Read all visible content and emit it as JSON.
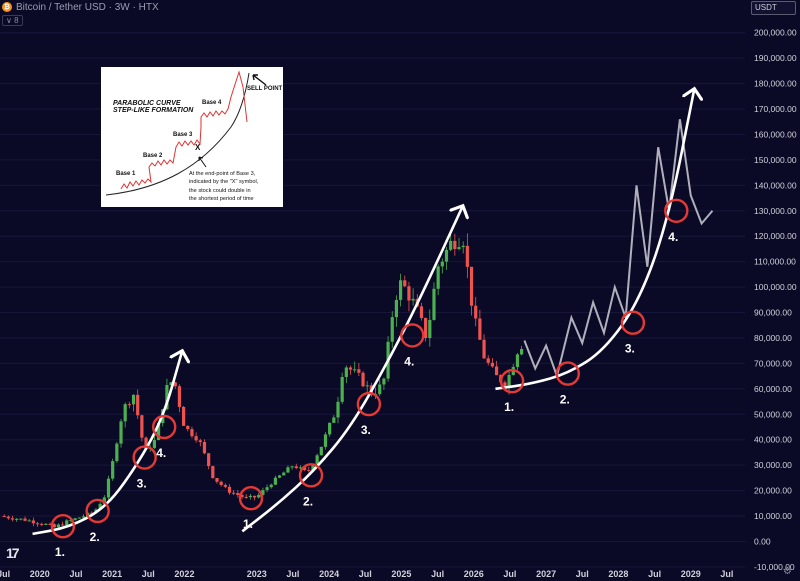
{
  "header": {
    "logo_glyph": "₿",
    "title": "Bitcoin / Tether USD · 3W · HTX",
    "indicator_count": "8",
    "currency": "USDT"
  },
  "icons": {
    "logo": "bitcoin-logo-icon",
    "brand": "tradingview-logo-icon",
    "settings": "gear-icon"
  },
  "colors": {
    "background": "#0b0a26",
    "up_candle": "#4caf50",
    "down_candle": "#ef5350",
    "projection": "#b0b0bc",
    "circle": "#e53935",
    "curve": "#ffffff"
  },
  "chart_data": {
    "type": "candlestick",
    "y_ticks": [
      -10000,
      0,
      10000,
      20000,
      30000,
      40000,
      50000,
      60000,
      70000,
      80000,
      90000,
      100000,
      110000,
      120000,
      130000,
      140000,
      150000,
      160000,
      170000,
      180000,
      190000,
      200000
    ],
    "y_tick_labels": [
      "-10,000.00",
      "0.00",
      "10,000.00",
      "20,000.00",
      "30,000.00",
      "40,000.00",
      "50,000.00",
      "60,000.00",
      "70,000.00",
      "80,000.00",
      "90,000.00",
      "100,000.00",
      "110,000.00",
      "120,000.00",
      "130,000.00",
      "140,000.00",
      "150,000.00",
      "160,000.00",
      "170,000.00",
      "180,000.00",
      "190,000.00",
      "200,000.00"
    ],
    "ylim": [
      -12000,
      205000
    ],
    "xlim": [
      2019.45,
      2029.75
    ],
    "x_ticks": [
      {
        "x": 2019.5,
        "label": "Jul"
      },
      {
        "x": 2020.0,
        "label": "2020"
      },
      {
        "x": 2020.5,
        "label": "Jul"
      },
      {
        "x": 2021.0,
        "label": "2021"
      },
      {
        "x": 2021.5,
        "label": "Jul"
      },
      {
        "x": 2022.0,
        "label": "2022"
      },
      {
        "x": 2023.0,
        "label": "2023"
      },
      {
        "x": 2023.5,
        "label": "Jul"
      },
      {
        "x": 2024.0,
        "label": "2024"
      },
      {
        "x": 2024.5,
        "label": "Jul"
      },
      {
        "x": 2025.0,
        "label": "2025"
      },
      {
        "x": 2025.5,
        "label": "Jul"
      },
      {
        "x": 2026.0,
        "label": "2026"
      },
      {
        "x": 2026.5,
        "label": "Jul"
      },
      {
        "x": 2027.0,
        "label": "2027"
      },
      {
        "x": 2027.5,
        "label": "Jul"
      },
      {
        "x": 2028.0,
        "label": "2028"
      },
      {
        "x": 2028.5,
        "label": "Jul"
      },
      {
        "x": 2029.0,
        "label": "2029"
      },
      {
        "x": 2029.5,
        "label": "Jul"
      }
    ],
    "price_path": [
      [
        2019.45,
        10000
      ],
      [
        2019.8,
        8500
      ],
      [
        2020.05,
        7000
      ],
      [
        2020.2,
        5500
      ],
      [
        2020.35,
        7500
      ],
      [
        2020.55,
        9500
      ],
      [
        2020.75,
        11500
      ],
      [
        2020.9,
        18000
      ],
      [
        2021.0,
        30000
      ],
      [
        2021.15,
        52000
      ],
      [
        2021.3,
        58000
      ],
      [
        2021.45,
        35000
      ],
      [
        2021.6,
        40000
      ],
      [
        2021.75,
        60000
      ],
      [
        2021.85,
        64000
      ],
      [
        2022.0,
        45000
      ],
      [
        2022.2,
        40000
      ],
      [
        2022.4,
        25000
      ],
      [
        2022.6,
        20000
      ],
      [
        2022.85,
        17000
      ],
      [
        2023.0,
        17500
      ],
      [
        2023.2,
        23000
      ],
      [
        2023.5,
        30000
      ],
      [
        2023.7,
        27000
      ],
      [
        2023.9,
        38000
      ],
      [
        2024.1,
        52000
      ],
      [
        2024.2,
        70000
      ],
      [
        2024.4,
        65000
      ],
      [
        2024.6,
        58000
      ],
      [
        2024.75,
        62000
      ],
      [
        2024.9,
        95000
      ],
      [
        2025.0,
        102000
      ],
      [
        2025.2,
        92000
      ],
      [
        2025.35,
        80000
      ],
      [
        2025.5,
        108000
      ],
      [
        2025.7,
        118000
      ],
      [
        2025.85,
        120000
      ],
      [
        2026.0,
        88000
      ],
      [
        2026.15,
        72000
      ],
      [
        2026.3,
        65000
      ],
      [
        2026.45,
        62000
      ],
      [
        2026.6,
        75000
      ],
      [
        2026.7,
        79000
      ]
    ],
    "projection": [
      [
        2026.7,
        79000
      ],
      [
        2026.85,
        68000
      ],
      [
        2027.0,
        77000
      ],
      [
        2027.15,
        65000
      ],
      [
        2027.35,
        88000
      ],
      [
        2027.5,
        78000
      ],
      [
        2027.65,
        94000
      ],
      [
        2027.8,
        82000
      ],
      [
        2027.95,
        100000
      ],
      [
        2028.1,
        88000
      ],
      [
        2028.25,
        140000
      ],
      [
        2028.4,
        108000
      ],
      [
        2028.55,
        155000
      ],
      [
        2028.7,
        130000
      ],
      [
        2028.85,
        166000
      ],
      [
        2029.0,
        136000
      ],
      [
        2029.15,
        125000
      ],
      [
        2029.3,
        130000
      ]
    ],
    "cycles": [
      {
        "curve": [
          [
            2019.9,
            3000
          ],
          [
            2020.4,
            5500
          ],
          [
            2020.9,
            13000
          ],
          [
            2021.3,
            28000
          ],
          [
            2021.7,
            48000
          ],
          [
            2021.97,
            75000
          ]
        ],
        "points": [
          {
            "label": "1.",
            "x": 2020.32,
            "y": 6000
          },
          {
            "label": "2.",
            "x": 2020.8,
            "y": 12000
          },
          {
            "label": "3.",
            "x": 2021.45,
            "y": 33000
          },
          {
            "label": "4.",
            "x": 2021.72,
            "y": 45000
          }
        ]
      },
      {
        "curve": [
          [
            2022.8,
            4000
          ],
          [
            2023.3,
            15000
          ],
          [
            2023.8,
            28000
          ],
          [
            2024.3,
            45000
          ],
          [
            2024.8,
            70000
          ],
          [
            2025.25,
            95000
          ],
          [
            2025.85,
            132000
          ]
        ],
        "points": [
          {
            "label": "1.",
            "x": 2022.92,
            "y": 17000
          },
          {
            "label": "2.",
            "x": 2023.75,
            "y": 26000
          },
          {
            "label": "3.",
            "x": 2024.55,
            "y": 54000
          },
          {
            "label": "4.",
            "x": 2025.15,
            "y": 81000
          }
        ]
      },
      {
        "curve": [
          [
            2026.3,
            60000
          ],
          [
            2026.8,
            62000
          ],
          [
            2027.3,
            66000
          ],
          [
            2027.8,
            75000
          ],
          [
            2028.3,
            95000
          ],
          [
            2028.7,
            128000
          ],
          [
            2029.05,
            178000
          ]
        ],
        "points": [
          {
            "label": "1.",
            "x": 2026.53,
            "y": 63000
          },
          {
            "label": "2.",
            "x": 2027.3,
            "y": 66000
          },
          {
            "label": "3.",
            "x": 2028.2,
            "y": 86000
          },
          {
            "label": "4.",
            "x": 2028.8,
            "y": 130000
          }
        ]
      }
    ]
  },
  "inset": {
    "title_line1": "PARABOLIC CURVE",
    "title_line2": "STEP-LIKE FORMATION",
    "base1": "Base 1",
    "base2": "Base 2",
    "base3": "Base 3",
    "base4": "Base 4",
    "sell_point": "SELL POINT",
    "marker": "X",
    "note_line1": "At the end-point of Base 3,",
    "note_line2": "indicated by the \"X\" symbol,",
    "note_line3": "the stock could double in",
    "note_line4": "the shortest period of time"
  },
  "footer": {
    "brand_glyph": "17",
    "settings_glyph": "⚙"
  }
}
